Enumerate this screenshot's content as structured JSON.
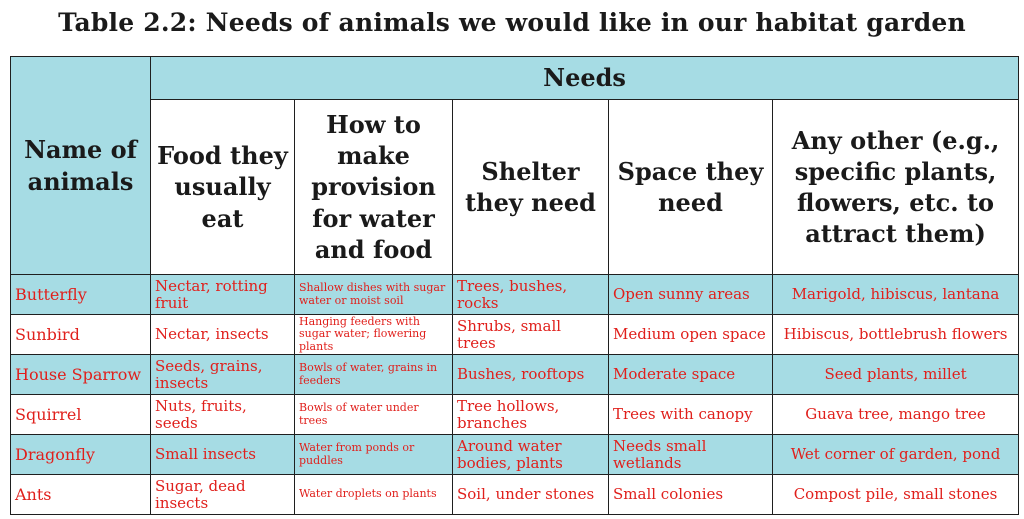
{
  "title": "Table 2.2: Needs of animals we would like in our habitat garden",
  "header": {
    "needs": "Needs",
    "name_col": "Name of animals",
    "food": "Food they usually eat",
    "provision": "How to make provision for water and food",
    "shelter": "Shelter they need",
    "space": "Space they need",
    "other": "Any other (e.g., specific plants, flowers, etc. to attract them)"
  },
  "rows": [
    {
      "name": "Butterfly",
      "food": "Nectar, rotting fruit",
      "provision": "Shallow dishes with sugar water or moist soil",
      "shelter": "Trees, bushes, rocks",
      "space": "Open sunny areas",
      "other": "Marigold, hibiscus, lantana"
    },
    {
      "name": "Sunbird",
      "food": "Nectar, insects",
      "provision": "Hanging feeders with sugar water; flowering plants",
      "shelter": "Shrubs, small trees",
      "space": "Medium open space",
      "other": "Hibiscus, bottlebrush flowers"
    },
    {
      "name": "House Sparrow",
      "food": "Seeds, grains, insects",
      "provision": "Bowls of water, grains in feeders",
      "shelter": "Bushes, rooftops",
      "space": "Moderate space",
      "other": "Seed plants, millet"
    },
    {
      "name": "Squirrel",
      "food": "Nuts, fruits, seeds",
      "provision": "Bowls of water under trees",
      "shelter": "Tree hollows, branches",
      "space": "Trees with canopy",
      "other": "Guava tree, mango tree"
    },
    {
      "name": "Dragonfly",
      "food": "Small insects",
      "provision": "Water from ponds or puddles",
      "shelter": "Around water bodies, plants",
      "space": "Needs small wetlands",
      "other": "Wet corner of garden, pond"
    },
    {
      "name": "Ants",
      "food": "Sugar, dead insects",
      "provision": "Water droplets on plants",
      "shelter": "Soil, under stones",
      "space": "Small colonies",
      "other": "Compost pile, small stones"
    }
  ],
  "colors": {
    "header_bg": "#a6dce4",
    "entry_text": "#e0201c",
    "border": "#1f1f1f"
  }
}
